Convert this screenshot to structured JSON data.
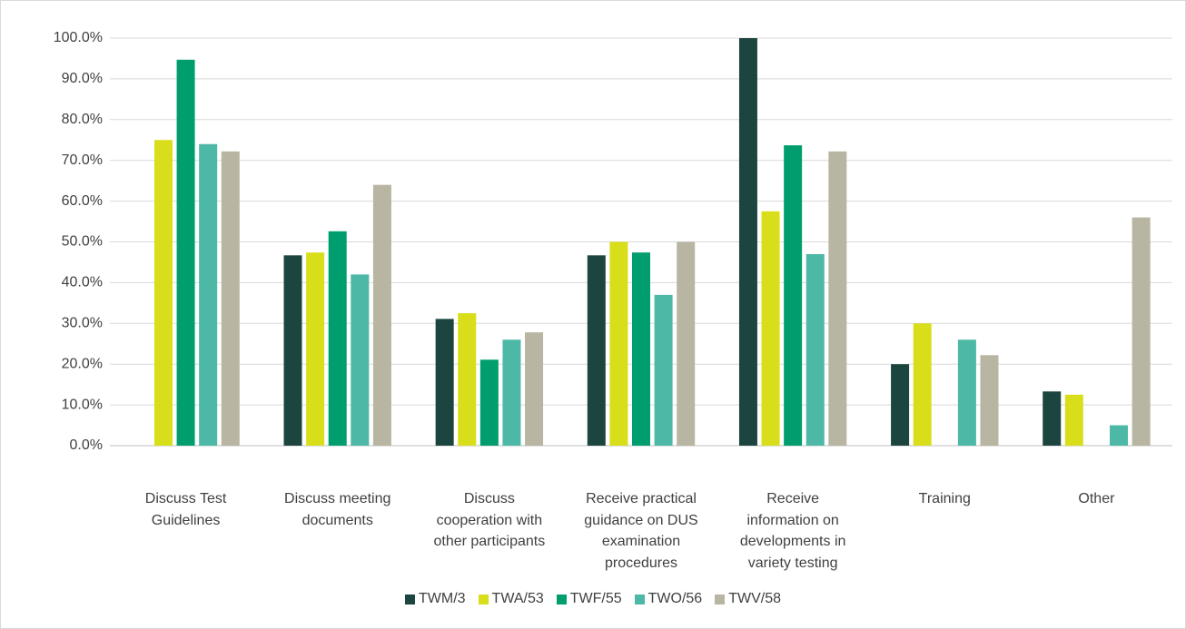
{
  "chart_data": {
    "type": "bar",
    "categories": [
      "Discuss Test Guidelines",
      "Discuss meeting documents",
      "Discuss cooperation with other participants",
      "Receive practical guidance on DUS examination procedures",
      "Receive information on developments in variety testing",
      "Training",
      "Other"
    ],
    "series": [
      {
        "name": "TWM/3",
        "color": "#1c4540",
        "values": [
          0,
          46.7,
          31.1,
          46.7,
          100,
          20,
          13.3
        ]
      },
      {
        "name": "TWA/53",
        "color": "#d9de1a",
        "values": [
          75,
          47.4,
          32.5,
          50,
          57.5,
          30,
          12.5
        ]
      },
      {
        "name": "TWF/55",
        "color": "#009e6e",
        "values": [
          94.7,
          52.6,
          21.1,
          47.4,
          73.7,
          0,
          0
        ]
      },
      {
        "name": "TWO/56",
        "color": "#4db8a6",
        "values": [
          74,
          42,
          26,
          37,
          47,
          26,
          5
        ]
      },
      {
        "name": "TWV/58",
        "color": "#b8b5a2",
        "values": [
          72.2,
          64,
          27.8,
          50,
          72.2,
          22.2,
          56
        ]
      }
    ],
    "ylim": [
      0,
      100
    ],
    "yticks": [
      {
        "value": 0,
        "label": "0.0%"
      },
      {
        "value": 10,
        "label": "10.0%"
      },
      {
        "value": 20,
        "label": "20.0%"
      },
      {
        "value": 30,
        "label": "30.0%"
      },
      {
        "value": 40,
        "label": "40.0%"
      },
      {
        "value": 50,
        "label": "50.0%"
      },
      {
        "value": 60,
        "label": "60.0%"
      },
      {
        "value": 70,
        "label": "70.0%"
      },
      {
        "value": 80,
        "label": "80.0%"
      },
      {
        "value": 90,
        "label": "90.0%"
      },
      {
        "value": 100,
        "label": "100.0%"
      }
    ],
    "grid": true,
    "legend": "bottom"
  }
}
